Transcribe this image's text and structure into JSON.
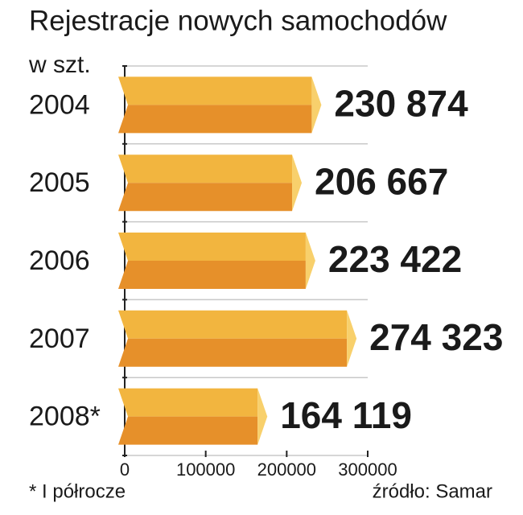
{
  "chart_data": {
    "type": "hbar3d",
    "title": "Rejestracje nowych samochodów",
    "subtitle": "w szt.",
    "categories": [
      "2004",
      "2005",
      "2006",
      "2007",
      "2008*"
    ],
    "values": [
      230874,
      206667,
      223422,
      274323,
      164119
    ],
    "value_labels": [
      "230 874",
      "206 667",
      "223 422",
      "274 323",
      "164 119"
    ],
    "value_label_colors": [
      "#1a1a1a",
      "#1a1a1a",
      "#1a1a1a",
      "#b0173c",
      "#1a1a1a"
    ],
    "color": "#f2b53f",
    "xlim": [
      0,
      300000
    ],
    "xticks": [
      0,
      100000,
      200000,
      300000
    ],
    "grid": true,
    "footnote": "* I półrocze",
    "source": "źródło: Samar"
  }
}
